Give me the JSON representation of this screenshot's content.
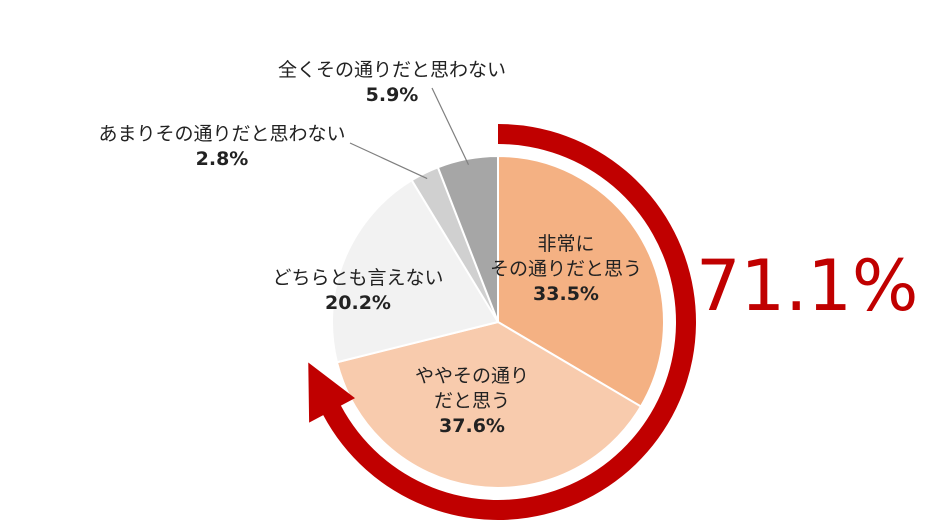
{
  "chart_data": {
    "type": "pie",
    "slices": [
      {
        "label_lines": [
          "非常に",
          "その通りだと思う"
        ],
        "value": 33.5,
        "value_text": "33.5%",
        "color": "#f4b183"
      },
      {
        "label_lines": [
          "ややその通り",
          "だと思う"
        ],
        "value": 37.6,
        "value_text": "37.6%",
        "color": "#f8cbad"
      },
      {
        "label_lines": [
          "どちらとも言えない"
        ],
        "value": 20.2,
        "value_text": "20.2%",
        "color": "#f2f2f2"
      },
      {
        "label_lines": [
          "あまりその通りだと思わない"
        ],
        "value": 2.8,
        "value_text": "2.8%",
        "color": "#d0d0d0"
      },
      {
        "label_lines": [
          "全くその通りだと思わない"
        ],
        "value": 5.9,
        "value_text": "5.9%",
        "color": "#a6a6a6"
      }
    ],
    "highlight": {
      "text": "71.1%",
      "color": "#c00000"
    }
  }
}
